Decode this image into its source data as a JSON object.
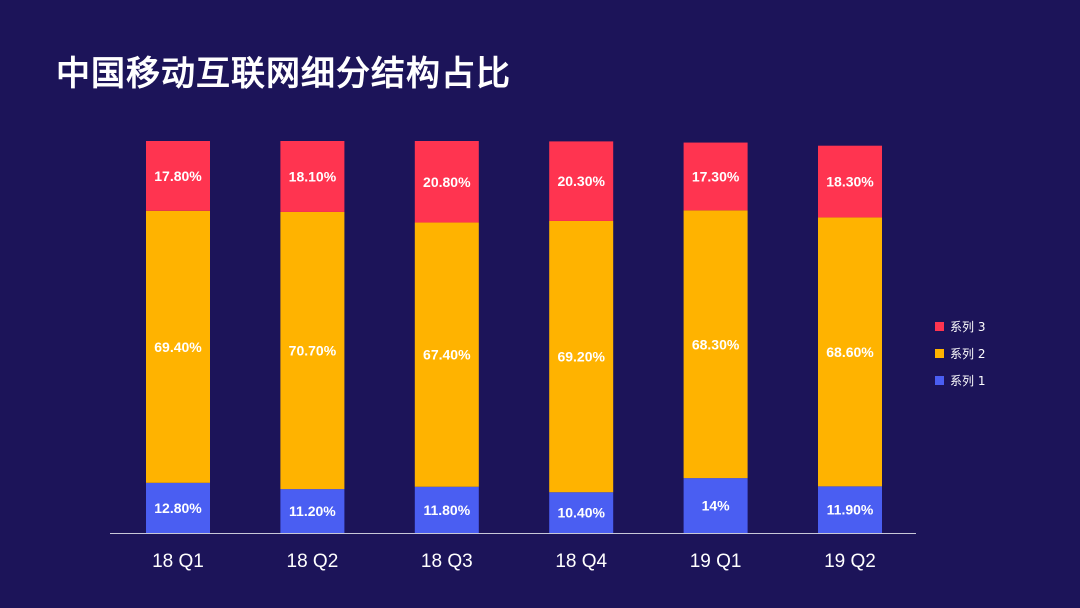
{
  "title": "中国移动互联网细分结构占比",
  "chart_data": {
    "type": "bar",
    "stacked": true,
    "title": "中国移动互联网细分结构占比",
    "categories": [
      "18 Q1",
      "18 Q2",
      "18 Q3",
      "18 Q4",
      "19 Q1",
      "19 Q2"
    ],
    "series": [
      {
        "name": "系列 1",
        "color": "#4a5ef2",
        "values": [
          12.8,
          11.2,
          11.8,
          10.4,
          14,
          11.9
        ],
        "labels": [
          "12.80%",
          "11.20%",
          "11.80%",
          "10.40%",
          "14%",
          "11.90%"
        ]
      },
      {
        "name": "系列 2",
        "color": "#ffb300",
        "values": [
          69.4,
          70.7,
          67.4,
          69.2,
          68.3,
          68.6
        ],
        "labels": [
          "69.40%",
          "70.70%",
          "67.40%",
          "69.20%",
          "68.30%",
          "68.60%"
        ]
      },
      {
        "name": "系列 3",
        "color": "#ff3450",
        "values": [
          17.8,
          18.1,
          20.8,
          20.3,
          17.3,
          18.3
        ],
        "labels": [
          "17.80%",
          "18.10%",
          "20.80%",
          "20.30%",
          "17.30%",
          "18.30%"
        ]
      }
    ],
    "xlabel": "",
    "ylabel": "",
    "ylim": [
      0,
      100
    ],
    "legend": {
      "position": "right",
      "order": [
        "系列 3",
        "系列 2",
        "系列 1"
      ]
    }
  }
}
